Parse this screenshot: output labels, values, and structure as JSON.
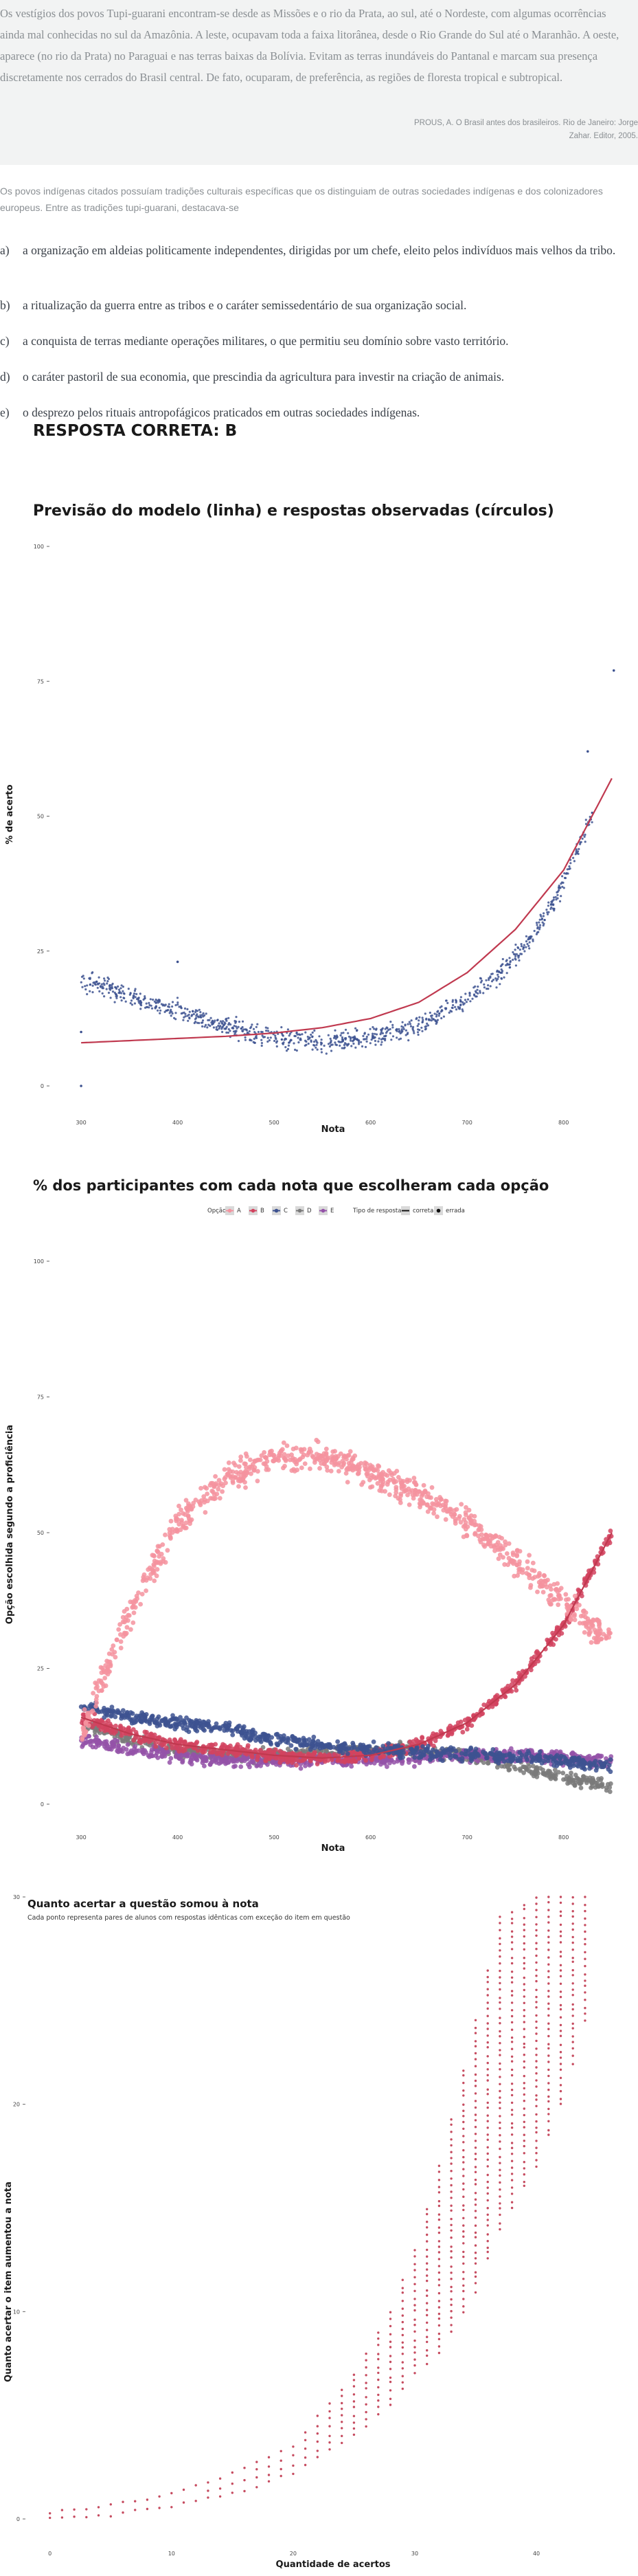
{
  "question": {
    "quote": "Os vestígios dos povos Tupi-guarani encontram-se desde as Missões e o rio da Prata, ao sul, até o Nordeste, com algumas ocorrências ainda mal conhecidas no sul da Amazônia. A leste, ocupavam toda a faixa litorânea, desde o Rio Grande do Sul até o Maranhão. A oeste, aparece (no rio da Prata) no Paraguai e nas terras baixas da Bolívia. Evitam as terras inundáveis do Pantanal e marcam sua presença discretamente nos cerrados do Brasil central. De fato, ocuparam, de preferência, as regiões de floresta tropical e subtropical.",
    "source_line1": "PROUS, A. O Brasil antes dos brasileiros. Rio de Janeiro: Jorge",
    "source_line2": "Zahar. Editor, 2005.",
    "intro": "Os povos indígenas citados possuíam tradições culturais específicas que os distinguiam de outras sociedades indígenas e dos colonizadores europeus. Entre as tradições tupi-guarani, destacava-se",
    "alternatives": [
      {
        "letter": "a)",
        "text": "a organização em aldeias politicamente independentes, dirigidas por um chefe, eleito pelos indivíduos mais velhos da tribo."
      },
      {
        "letter": "b)",
        "text": "a ritualização da guerra entre as tribos e o caráter semissedentário de sua organização social."
      },
      {
        "letter": "c)",
        "text": "a conquista de terras mediante operações militares, o que permitiu seu domínio sobre vasto território."
      },
      {
        "letter": "d)",
        "text": "o caráter pastoril de sua economia, que prescindia da agricultura para investir na criação de animais."
      },
      {
        "letter": "e)",
        "text": "o desprezo pelos rituais antropofágicos praticados em outras sociedades indígenas."
      }
    ],
    "answer": "RESPOSTA CORRETA: B"
  },
  "colors": {
    "A": "#f4939f",
    "B": "#d2435f",
    "C": "#3d5290",
    "D": "#7a7a7a",
    "E": "#9452a8",
    "model_line": "#c0394f",
    "points_chart1": "#3d5290",
    "points_chart3": "#c0394f"
  },
  "chart_data": [
    {
      "type": "scatter",
      "title": "Previsão do modelo (linha) e respostas observadas (círculos)",
      "xlabel": "Nota",
      "ylabel": "% de acerto",
      "xlim": [
        280,
        860
      ],
      "ylim": [
        0,
        100
      ],
      "xticks": [
        300,
        400,
        500,
        600,
        700,
        800
      ],
      "yticks": [
        0,
        25,
        50,
        75,
        100
      ],
      "grid": false,
      "observed_profile": {
        "x": [
          300,
          330,
          360,
          400,
          450,
          500,
          550,
          600,
          650,
          700,
          730,
          760,
          790,
          810,
          830
        ],
        "y": [
          19,
          18,
          16,
          14,
          11,
          9,
          8,
          9,
          11,
          16,
          20,
          26,
          34,
          42,
          50
        ]
      },
      "model_line": {
        "x": [
          300,
          350,
          400,
          450,
          500,
          550,
          600,
          650,
          700,
          750,
          800,
          850
        ],
        "y": [
          8,
          8.4,
          8.8,
          9.2,
          9.8,
          10.8,
          12.5,
          15.5,
          21,
          29,
          40,
          57
        ]
      },
      "outliers": [
        {
          "x": 300,
          "y": 0
        },
        {
          "x": 300,
          "y": 10
        },
        {
          "x": 400,
          "y": 23
        },
        {
          "x": 825,
          "y": 62
        },
        {
          "x": 852,
          "y": 77
        }
      ]
    },
    {
      "type": "scatter",
      "title": "% dos participantes com cada nota que escolheram cada opção",
      "xlabel": "Nota",
      "ylabel": "Opção escolhida segundo a proficiência",
      "xlim": [
        280,
        860
      ],
      "ylim": [
        0,
        100
      ],
      "xticks": [
        300,
        400,
        500,
        600,
        700,
        800
      ],
      "yticks": [
        0,
        25,
        50,
        75,
        100
      ],
      "legend": {
        "position": "top",
        "option_title": "Opção:",
        "options": [
          "A",
          "B",
          "C",
          "D",
          "E"
        ],
        "type_title": "Tipo de resposta",
        "types": [
          "correta",
          "errada"
        ]
      },
      "series": [
        {
          "name": "A",
          "x": [
            300,
            350,
            400,
            450,
            500,
            550,
            600,
            650,
            700,
            750,
            800,
            850
          ],
          "y": [
            13,
            35,
            52,
            60,
            64,
            64,
            61,
            57,
            52,
            45,
            37,
            30
          ]
        },
        {
          "name": "B",
          "x": [
            300,
            350,
            400,
            450,
            500,
            550,
            600,
            650,
            700,
            750,
            800,
            850
          ],
          "y": [
            16,
            13,
            11,
            10,
            9,
            8.5,
            9,
            11,
            15,
            22,
            33,
            50
          ]
        },
        {
          "name": "C",
          "x": [
            300,
            350,
            400,
            450,
            500,
            550,
            600,
            650,
            700,
            750,
            800,
            850
          ],
          "y": [
            18,
            16,
            15,
            14,
            12,
            11,
            10,
            9.5,
            9,
            8.5,
            8,
            7
          ]
        },
        {
          "name": "D",
          "x": [
            300,
            350,
            400,
            450,
            500,
            550,
            600,
            650,
            700,
            750,
            800,
            850
          ],
          "y": [
            15,
            12,
            10,
            9,
            9,
            9.5,
            10,
            10,
            9,
            7,
            5,
            3
          ]
        },
        {
          "name": "E",
          "x": [
            300,
            350,
            400,
            450,
            500,
            550,
            600,
            650,
            700,
            750,
            800,
            850
          ],
          "y": [
            12,
            10,
            9,
            8,
            8,
            8,
            8,
            8.5,
            9,
            9,
            8.5,
            8
          ]
        }
      ]
    },
    {
      "type": "scatter",
      "title": "Quanto acertar a questão somou à nota",
      "subtitle": "Cada ponto representa pares de alunos com respostas idênticas com exceção do item em questão",
      "xlabel": "Quantidade de acertos",
      "ylabel": "Quanto acertar o item aumentou a nota",
      "xlim": [
        -1,
        47
      ],
      "ylim": [
        0,
        30
      ],
      "xticks": [
        0,
        10,
        20,
        30,
        40
      ],
      "yticks": [
        0,
        10,
        20,
        30
      ],
      "profile": {
        "x": [
          0,
          5,
          10,
          15,
          20,
          25,
          28,
          30,
          32,
          35,
          37,
          40,
          42,
          44
        ],
        "y_min": [
          0,
          0.2,
          0.6,
          1.2,
          2.2,
          4,
          5.5,
          7,
          8,
          11,
          14,
          17,
          20,
          24
        ],
        "y_max": [
          0.3,
          0.7,
          1.2,
          2.2,
          3.5,
          7,
          10,
          13,
          17,
          24,
          29,
          30,
          30,
          30
        ]
      }
    }
  ]
}
